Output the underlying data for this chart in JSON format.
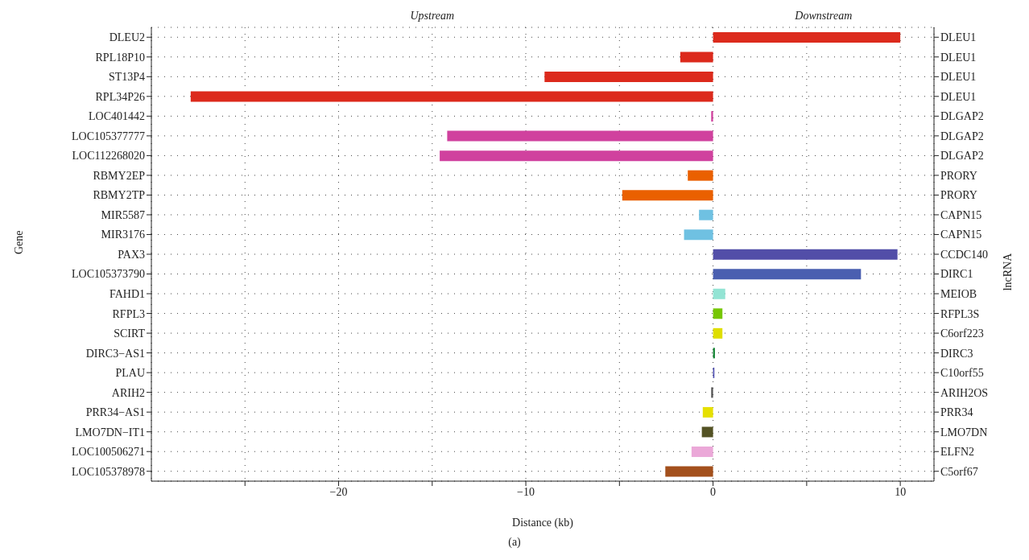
{
  "chart_data": {
    "type": "bar",
    "orientation": "horizontal",
    "xlabel": "Distance (kb)",
    "ylabel": "Gene",
    "annotations": [
      "Upstream",
      "Downstream",
      "(a)",
      "lncRNA"
    ],
    "categories": [
      "DLEU2",
      "RPL18P10",
      "ST13P4",
      "RPL34P26",
      "LOC401442",
      "LOC105377777",
      "LOC112268020",
      "RBMY2EP",
      "RBMY2TP",
      "MIR5587",
      "MIR3176",
      "PAX3",
      "LOC105373790",
      "FAHD1",
      "RFPL3",
      "SCIRT",
      "DIRC3−AS1",
      "PLAU",
      "ARIH2",
      "PRR34−AS1",
      "LMO7DN−IT1",
      "LOC100506271",
      "LOC105378978"
    ],
    "y2_categories": [
      "DLEU1",
      "DLEU1",
      "DLEU1",
      "DLEU1",
      "DLGAP2",
      "DLGAP2",
      "DLGAP2",
      "PRORY",
      "PRORY",
      "CAPN15",
      "CAPN15",
      "CCDC140",
      "DIRC1",
      "MEIOB",
      "RFPL3S",
      "C6orf223",
      "DIRC3",
      "C10orf55",
      "ARIH2OS",
      "PRR34",
      "LMO7DN",
      "ELFN2",
      "C5orf67"
    ],
    "values": [
      10.0,
      -1.75,
      -9.0,
      -27.9,
      -0.1,
      -14.2,
      -14.6,
      -1.35,
      -4.85,
      -0.75,
      -1.55,
      9.85,
      7.9,
      0.65,
      0.5,
      0.5,
      0.1,
      0.07,
      -0.1,
      -0.55,
      -0.6,
      -1.15,
      -2.55
    ],
    "colors": [
      "#dc2a1c",
      "#dc2a1c",
      "#dc2a1c",
      "#dc2a1c",
      "#d0419e",
      "#d0419e",
      "#d0419e",
      "#ea6000",
      "#ea6000",
      "#6fc1e2",
      "#6fc1e2",
      "#524ea8",
      "#4a5fb0",
      "#93e4d4",
      "#76c602",
      "#dede00",
      "#168535",
      "#4b4bb0",
      "#555555",
      "#e6e000",
      "#535224",
      "#eba8d8",
      "#a3501c"
    ],
    "xlim": [
      -30,
      11.8
    ],
    "xticks": [
      {
        "value": -25,
        "label": null
      },
      -20,
      {
        "value": -15,
        "label": null
      },
      -10,
      {
        "value": -5,
        "label": null
      },
      0,
      {
        "value": 5,
        "label": null
      },
      10
    ],
    "grid": true,
    "legend": false
  }
}
